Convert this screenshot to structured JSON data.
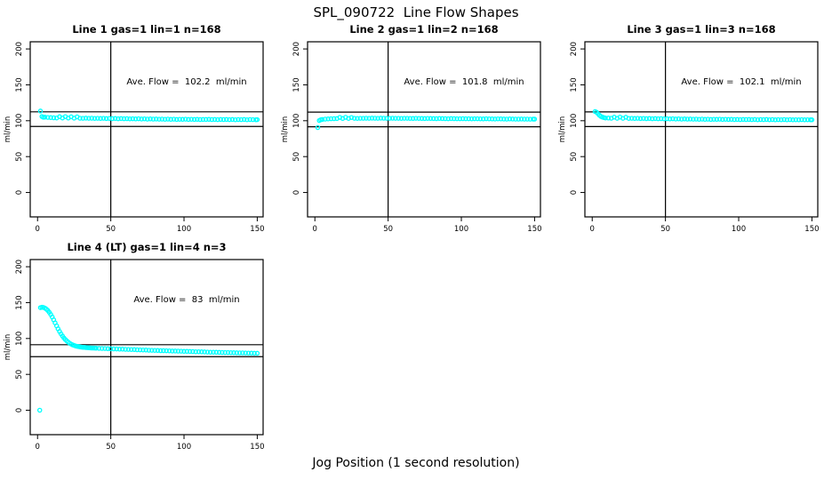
{
  "figure": {
    "title": "SPL_090722  Line Flow Shapes",
    "xlabel": "Jog Position (1 second resolution)",
    "background": "#ffffff",
    "point_color": "#00ffff",
    "axis_color": "#000000",
    "text_color": "#000000"
  },
  "chart_data": [
    {
      "type": "scatter",
      "title": "Line 1 gas=1 lin=1 n=168",
      "ylabel": "ml/min",
      "annotation": "Ave. Flow =  102.2  ml/min",
      "ave_flow_ml_min": 102.2,
      "xlim": [
        -5,
        154
      ],
      "ylim": [
        -34,
        210
      ],
      "xticks": [
        0,
        50,
        100,
        150
      ],
      "yticks": [
        0,
        50,
        100,
        150,
        200
      ],
      "vline_x": 50,
      "hlines": [
        112.4,
        92.0
      ],
      "points": [
        [
          2,
          113.5
        ],
        [
          3,
          105.8
        ],
        [
          4,
          104.9
        ],
        [
          5,
          105
        ],
        [
          7,
          104.6
        ],
        [
          9,
          104.3
        ],
        [
          11,
          104.1
        ],
        [
          13,
          103.9
        ],
        [
          15,
          105.6
        ],
        [
          17,
          103.8
        ],
        [
          19,
          105.7
        ],
        [
          21,
          103.7
        ],
        [
          23,
          105.5
        ],
        [
          25,
          103.6
        ],
        [
          27,
          105.4
        ],
        [
          29,
          103.5
        ],
        [
          31,
          103.4
        ],
        [
          33,
          103.6
        ],
        [
          35,
          103.3
        ],
        [
          37,
          103.5
        ],
        [
          39,
          103.2
        ],
        [
          41,
          103.4
        ],
        [
          43,
          103.1
        ],
        [
          45,
          103.3
        ],
        [
          47,
          103
        ],
        [
          49,
          103.2
        ],
        [
          51,
          102.9
        ],
        [
          53,
          103.1
        ],
        [
          55,
          102.8
        ],
        [
          57,
          103
        ],
        [
          59,
          102.7
        ],
        [
          61,
          102.9
        ],
        [
          63,
          102.6
        ],
        [
          65,
          102.8
        ],
        [
          67,
          102.5
        ],
        [
          69,
          102.7
        ],
        [
          71,
          102.4
        ],
        [
          73,
          102.6
        ],
        [
          75,
          102.3
        ],
        [
          77,
          102.5
        ],
        [
          79,
          102.2
        ],
        [
          81,
          102.4
        ],
        [
          83,
          102.1
        ],
        [
          85,
          102.3
        ],
        [
          87,
          102
        ],
        [
          89,
          102.2
        ],
        [
          91,
          101.9
        ],
        [
          93,
          102.1
        ],
        [
          95,
          101.8
        ],
        [
          97,
          102
        ],
        [
          99,
          101.9
        ],
        [
          101,
          102.1
        ],
        [
          103,
          101.8
        ],
        [
          105,
          102
        ],
        [
          107,
          101.7
        ],
        [
          109,
          101.9
        ],
        [
          111,
          101.6
        ],
        [
          113,
          101.8
        ],
        [
          115,
          101.7
        ],
        [
          117,
          101.9
        ],
        [
          119,
          101.6
        ],
        [
          121,
          101.8
        ],
        [
          123,
          101.5
        ],
        [
          125,
          101.7
        ],
        [
          127,
          101.6
        ],
        [
          129,
          101.8
        ],
        [
          131,
          101.5
        ],
        [
          133,
          101.7
        ],
        [
          135,
          101.4
        ],
        [
          137,
          101.6
        ],
        [
          139,
          101.5
        ],
        [
          141,
          101.7
        ],
        [
          143,
          101.4
        ],
        [
          145,
          101.6
        ],
        [
          147,
          101.5
        ],
        [
          149,
          101.4
        ],
        [
          150,
          101.5
        ]
      ]
    },
    {
      "type": "scatter",
      "title": "Line 2 gas=1 lin=2 n=168",
      "ylabel": "ml/min",
      "annotation": "Ave. Flow =  101.8  ml/min",
      "ave_flow_ml_min": 101.8,
      "xlim": [
        -5,
        154
      ],
      "ylim": [
        -34,
        210
      ],
      "xticks": [
        0,
        50,
        100,
        150
      ],
      "yticks": [
        0,
        50,
        100,
        150,
        200
      ],
      "vline_x": 50,
      "hlines": [
        112.0,
        91.6
      ],
      "points": [
        [
          2,
          90.5
        ],
        [
          3,
          100.2
        ],
        [
          4,
          101.2
        ],
        [
          5,
          101.8
        ],
        [
          7,
          102.2
        ],
        [
          9,
          102.5
        ],
        [
          11,
          102.7
        ],
        [
          13,
          102.9
        ],
        [
          15,
          103
        ],
        [
          17,
          104.6
        ],
        [
          19,
          103.1
        ],
        [
          21,
          104.7
        ],
        [
          23,
          103.2
        ],
        [
          25,
          104.5
        ],
        [
          27,
          103.3
        ],
        [
          29,
          103.2
        ],
        [
          31,
          103.4
        ],
        [
          33,
          103.3
        ],
        [
          35,
          103.5
        ],
        [
          37,
          103.4
        ],
        [
          39,
          103.6
        ],
        [
          41,
          103.5
        ],
        [
          43,
          103.4
        ],
        [
          45,
          103.6
        ],
        [
          47,
          103.5
        ],
        [
          49,
          103.4
        ],
        [
          51,
          103.3
        ],
        [
          53,
          103.5
        ],
        [
          55,
          103.4
        ],
        [
          57,
          103.3
        ],
        [
          59,
          103.2
        ],
        [
          61,
          103.4
        ],
        [
          63,
          103.3
        ],
        [
          65,
          103.2
        ],
        [
          67,
          103.1
        ],
        [
          69,
          103.3
        ],
        [
          71,
          103.2
        ],
        [
          73,
          103.1
        ],
        [
          75,
          103
        ],
        [
          77,
          103.2
        ],
        [
          79,
          103.1
        ],
        [
          81,
          103
        ],
        [
          83,
          102.9
        ],
        [
          85,
          103.1
        ],
        [
          87,
          103
        ],
        [
          89,
          102.9
        ],
        [
          91,
          102.8
        ],
        [
          93,
          103
        ],
        [
          95,
          102.9
        ],
        [
          97,
          102.8
        ],
        [
          99,
          102.7
        ],
        [
          101,
          102.9
        ],
        [
          103,
          102.8
        ],
        [
          105,
          102.7
        ],
        [
          107,
          102.6
        ],
        [
          109,
          102.8
        ],
        [
          111,
          102.7
        ],
        [
          113,
          102.6
        ],
        [
          115,
          102.5
        ],
        [
          117,
          102.7
        ],
        [
          119,
          102.6
        ],
        [
          121,
          102.5
        ],
        [
          123,
          102.4
        ],
        [
          125,
          102.6
        ],
        [
          127,
          102.5
        ],
        [
          129,
          102.4
        ],
        [
          131,
          102.3
        ],
        [
          133,
          102.5
        ],
        [
          135,
          102.4
        ],
        [
          137,
          102.3
        ],
        [
          139,
          102.2
        ],
        [
          141,
          102.4
        ],
        [
          143,
          102.3
        ],
        [
          145,
          102.2
        ],
        [
          147,
          102.1
        ],
        [
          149,
          102.3
        ],
        [
          150,
          102.2
        ]
      ]
    },
    {
      "type": "scatter",
      "title": "Line 3 gas=1 lin=3 n=168",
      "ylabel": "ml/min",
      "annotation": "Ave. Flow =  102.1  ml/min",
      "ave_flow_ml_min": 102.1,
      "xlim": [
        -5,
        154
      ],
      "ylim": [
        -34,
        210
      ],
      "xticks": [
        0,
        50,
        100,
        150
      ],
      "yticks": [
        0,
        50,
        100,
        150,
        200
      ],
      "vline_x": 50,
      "hlines": [
        112.3,
        91.9
      ],
      "points": [
        [
          2,
          112.8
        ],
        [
          3,
          111.8
        ],
        [
          4,
          109.5
        ],
        [
          5,
          107.5
        ],
        [
          6,
          106
        ],
        [
          7,
          105
        ],
        [
          8,
          104.3
        ],
        [
          9,
          103.9
        ],
        [
          11,
          103.7
        ],
        [
          13,
          103.5
        ],
        [
          15,
          105
        ],
        [
          17,
          103.4
        ],
        [
          19,
          105.1
        ],
        [
          21,
          103.3
        ],
        [
          23,
          104.9
        ],
        [
          25,
          103.2
        ],
        [
          27,
          103.4
        ],
        [
          29,
          103.1
        ],
        [
          31,
          103.3
        ],
        [
          33,
          103
        ],
        [
          35,
          103.2
        ],
        [
          37,
          102.9
        ],
        [
          39,
          103.1
        ],
        [
          41,
          102.8
        ],
        [
          43,
          103
        ],
        [
          45,
          102.7
        ],
        [
          47,
          102.9
        ],
        [
          49,
          102.6
        ],
        [
          51,
          102.8
        ],
        [
          53,
          102.5
        ],
        [
          55,
          102.7
        ],
        [
          57,
          102.4
        ],
        [
          59,
          102.6
        ],
        [
          61,
          102.3
        ],
        [
          63,
          102.5
        ],
        [
          65,
          102.2
        ],
        [
          67,
          102.4
        ],
        [
          69,
          102.1
        ],
        [
          71,
          102.3
        ],
        [
          73,
          102
        ],
        [
          75,
          102.2
        ],
        [
          77,
          101.9
        ],
        [
          79,
          102.1
        ],
        [
          81,
          101.8
        ],
        [
          83,
          102
        ],
        [
          85,
          101.9
        ],
        [
          87,
          102.1
        ],
        [
          89,
          101.8
        ],
        [
          91,
          102
        ],
        [
          93,
          101.7
        ],
        [
          95,
          101.9
        ],
        [
          97,
          101.6
        ],
        [
          99,
          101.8
        ],
        [
          101,
          101.5
        ],
        [
          103,
          101.7
        ],
        [
          105,
          101.6
        ],
        [
          107,
          101.8
        ],
        [
          109,
          101.5
        ],
        [
          111,
          101.7
        ],
        [
          113,
          101.4
        ],
        [
          115,
          101.6
        ],
        [
          117,
          101.5
        ],
        [
          119,
          101.7
        ],
        [
          121,
          101.4
        ],
        [
          123,
          101.6
        ],
        [
          125,
          101.3
        ],
        [
          127,
          101.5
        ],
        [
          129,
          101.4
        ],
        [
          131,
          101.6
        ],
        [
          133,
          101.3
        ],
        [
          135,
          101.5
        ],
        [
          137,
          101.2
        ],
        [
          139,
          101.4
        ],
        [
          141,
          101.3
        ],
        [
          143,
          101.5
        ],
        [
          145,
          101.2
        ],
        [
          147,
          101.4
        ],
        [
          149,
          101.3
        ],
        [
          150,
          101.3
        ]
      ]
    },
    {
      "type": "scatter",
      "title": "Line 4 (LT) gas=1 lin=4 n=3",
      "ylabel": "ml/min",
      "annotation": "Ave. Flow =  83  ml/min",
      "ave_flow_ml_min": 83,
      "xlim": [
        -5,
        154
      ],
      "ylim": [
        -34,
        210
      ],
      "xticks": [
        0,
        50,
        100,
        150
      ],
      "yticks": [
        0,
        50,
        100,
        150,
        200
      ],
      "vline_x": 50,
      "hlines": [
        91.3,
        74.7
      ],
      "points": [
        [
          1.5,
          0
        ],
        [
          2,
          143
        ],
        [
          3,
          143.6
        ],
        [
          4,
          143.2
        ],
        [
          5,
          142.4
        ],
        [
          6,
          141
        ],
        [
          7,
          139
        ],
        [
          8,
          136.5
        ],
        [
          9,
          133.5
        ],
        [
          10,
          130
        ],
        [
          11,
          126
        ],
        [
          12,
          121.8
        ],
        [
          13,
          117.6
        ],
        [
          14,
          113.5
        ],
        [
          15,
          109.8
        ],
        [
          16,
          106.4
        ],
        [
          17,
          103.4
        ],
        [
          18,
          100.8
        ],
        [
          19,
          98.5
        ],
        [
          20,
          96.5
        ],
        [
          21,
          94.8
        ],
        [
          22,
          93.3
        ],
        [
          23,
          92.1
        ],
        [
          24,
          91.1
        ],
        [
          25,
          90.3
        ],
        [
          26,
          89.6
        ],
        [
          27,
          89.1
        ],
        [
          28,
          88.7
        ],
        [
          29,
          88.3
        ],
        [
          30,
          88
        ],
        [
          31,
          87.8
        ],
        [
          32,
          87.6
        ],
        [
          33,
          87.4
        ],
        [
          34,
          87.2
        ],
        [
          35,
          87.1
        ],
        [
          36,
          86.9
        ],
        [
          37,
          86.8
        ],
        [
          38,
          86.7
        ],
        [
          39,
          86.6
        ],
        [
          40,
          86.5
        ],
        [
          42,
          86.3
        ],
        [
          44,
          86.1
        ],
        [
          46,
          86
        ],
        [
          48,
          85.8
        ],
        [
          50,
          85.7
        ],
        [
          52,
          85.5
        ],
        [
          54,
          85.4
        ],
        [
          56,
          85.2
        ],
        [
          58,
          85.1
        ],
        [
          60,
          84.9
        ],
        [
          62,
          84.8
        ],
        [
          64,
          84.6
        ],
        [
          66,
          84.5
        ],
        [
          68,
          84.3
        ],
        [
          70,
          84.2
        ],
        [
          72,
          84
        ],
        [
          74,
          83.9
        ],
        [
          76,
          83.7
        ],
        [
          78,
          83.6
        ],
        [
          80,
          83.4
        ],
        [
          82,
          83.3
        ],
        [
          84,
          83.1
        ],
        [
          86,
          83
        ],
        [
          88,
          82.9
        ],
        [
          90,
          82.8
        ],
        [
          92,
          82.6
        ],
        [
          94,
          82.5
        ],
        [
          96,
          82.4
        ],
        [
          98,
          82.3
        ],
        [
          100,
          82.1
        ],
        [
          102,
          82
        ],
        [
          104,
          81.9
        ],
        [
          106,
          81.8
        ],
        [
          108,
          81.6
        ],
        [
          110,
          81.5
        ],
        [
          112,
          81.4
        ],
        [
          114,
          81.3
        ],
        [
          116,
          81.1
        ],
        [
          118,
          81
        ],
        [
          120,
          80.9
        ],
        [
          122,
          80.8
        ],
        [
          124,
          80.7
        ],
        [
          126,
          80.6
        ],
        [
          128,
          80.5
        ],
        [
          130,
          80.4
        ],
        [
          132,
          80.3
        ],
        [
          134,
          80.2
        ],
        [
          136,
          80.1
        ],
        [
          138,
          80
        ],
        [
          140,
          79.9
        ],
        [
          142,
          79.8
        ],
        [
          144,
          79.7
        ],
        [
          146,
          79.6
        ],
        [
          148,
          79.5
        ],
        [
          150,
          79.4
        ]
      ]
    }
  ]
}
